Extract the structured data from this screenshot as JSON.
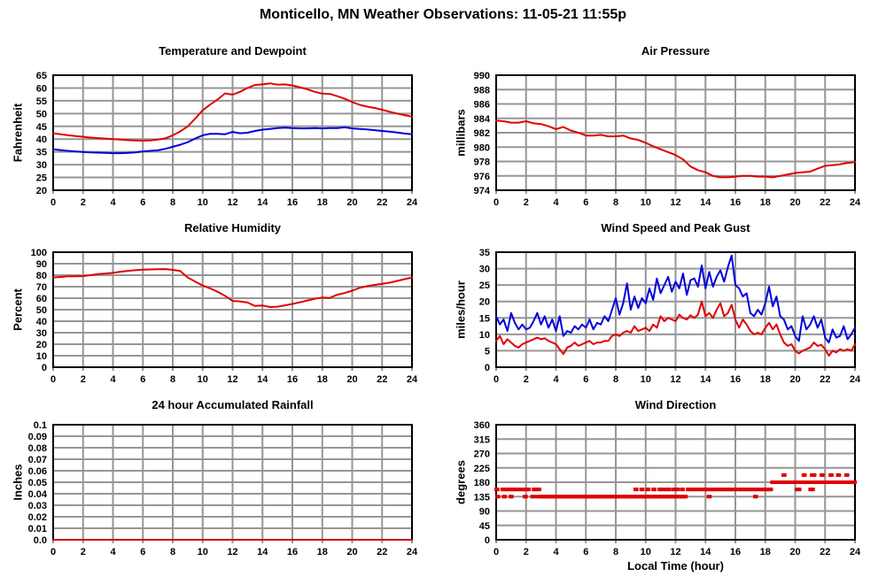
{
  "title": "Monticello, MN Weather Observations: 11-05-21 11:55p",
  "chart_data": [
    {
      "id": "temperature-dewpoint",
      "type": "line",
      "title": "Temperature and Dewpoint",
      "ylabel": "Fahrenheit",
      "xlabel": "",
      "xlim": [
        0,
        24
      ],
      "ylim": [
        20,
        65
      ],
      "xtick_values": [
        0,
        2,
        4,
        6,
        8,
        10,
        12,
        14,
        16,
        18,
        20,
        22,
        24
      ],
      "xtick_labels": [
        "0",
        "2",
        "4",
        "6",
        "8",
        "10",
        "12",
        "14",
        "16",
        "18",
        "20",
        "22",
        "24"
      ],
      "ytick_values": [
        20,
        25,
        30,
        35,
        40,
        45,
        50,
        55,
        60,
        65
      ],
      "ytick_labels": [
        "20",
        "25",
        "30",
        "35",
        "40",
        "45",
        "50",
        "55",
        "60",
        "65"
      ],
      "series": [
        {
          "name": "temperature",
          "color": "#e00000",
          "x0": 0,
          "dx": 0.5,
          "y": [
            42.3,
            41.9,
            41.5,
            41.2,
            40.9,
            40.6,
            40.4,
            40.2,
            40.0,
            39.8,
            39.6,
            39.5,
            39.4,
            39.5,
            39.8,
            40.3,
            41.5,
            43.0,
            45.0,
            48.0,
            51.3,
            53.5,
            55.5,
            57.9,
            57.4,
            58.5,
            60.0,
            61.2,
            61.4,
            61.8,
            61.3,
            61.4,
            61.0,
            60.3,
            59.5,
            58.5,
            57.8,
            57.7,
            56.8,
            55.8,
            54.5,
            53.4,
            52.7,
            52.2,
            51.5,
            50.7,
            50.0,
            49.4,
            48.8
          ]
        },
        {
          "name": "dewpoint",
          "color": "#0000dd",
          "x0": 0,
          "dx": 0.5,
          "y": [
            36.0,
            35.7,
            35.4,
            35.2,
            35.0,
            34.8,
            34.7,
            34.6,
            34.5,
            34.5,
            34.6,
            34.8,
            35.2,
            35.4,
            35.6,
            36.2,
            37.0,
            37.8,
            38.8,
            40.2,
            41.5,
            42.1,
            42.1,
            41.9,
            42.8,
            42.3,
            42.5,
            43.2,
            43.7,
            44.0,
            44.3,
            44.5,
            44.3,
            44.2,
            44.2,
            44.3,
            44.2,
            44.3,
            44.3,
            44.6,
            44.2,
            44.0,
            43.8,
            43.5,
            43.2,
            42.9,
            42.6,
            42.2,
            41.9
          ]
        }
      ]
    },
    {
      "id": "air-pressure",
      "type": "line",
      "title": "Air Pressure",
      "ylabel": "millibars",
      "xlabel": "",
      "xlim": [
        0,
        24
      ],
      "ylim": [
        974,
        990
      ],
      "xtick_values": [
        0,
        2,
        4,
        6,
        8,
        10,
        12,
        14,
        16,
        18,
        20,
        22,
        24
      ],
      "xtick_labels": [
        "0",
        "2",
        "4",
        "6",
        "8",
        "10",
        "12",
        "14",
        "16",
        "18",
        "20",
        "22",
        "24"
      ],
      "ytick_values": [
        974,
        976,
        978,
        980,
        982,
        984,
        986,
        988,
        990
      ],
      "ytick_labels": [
        "974",
        "976",
        "978",
        "980",
        "982",
        "984",
        "986",
        "988",
        "990"
      ],
      "series": [
        {
          "name": "pressure",
          "color": "#e00000",
          "x0": 0,
          "dx": 0.5,
          "y": [
            983.7,
            983.6,
            983.4,
            983.4,
            983.6,
            983.3,
            983.2,
            982.9,
            982.5,
            982.8,
            982.3,
            982.0,
            981.6,
            981.6,
            981.7,
            981.5,
            981.5,
            981.6,
            981.2,
            981.0,
            980.6,
            980.1,
            979.7,
            979.3,
            978.9,
            978.3,
            977.3,
            976.8,
            976.5,
            976.0,
            975.8,
            975.8,
            975.9,
            976.0,
            976.0,
            975.9,
            975.9,
            975.8,
            976.0,
            976.2,
            976.4,
            976.5,
            976.6,
            977.0,
            977.4,
            977.5,
            977.6,
            977.8,
            977.9
          ]
        }
      ]
    },
    {
      "id": "relative-humidity",
      "type": "line",
      "title": "Relative Humidity",
      "ylabel": "Percent",
      "xlabel": "",
      "xlim": [
        0,
        24
      ],
      "ylim": [
        0,
        100
      ],
      "xtick_values": [
        0,
        2,
        4,
        6,
        8,
        10,
        12,
        14,
        16,
        18,
        20,
        22,
        24
      ],
      "xtick_labels": [
        "0",
        "2",
        "4",
        "6",
        "8",
        "10",
        "12",
        "14",
        "16",
        "18",
        "20",
        "22",
        "24"
      ],
      "ytick_values": [
        0,
        10,
        20,
        30,
        40,
        50,
        60,
        70,
        80,
        90,
        100
      ],
      "ytick_labels": [
        "0",
        "10",
        "20",
        "30",
        "40",
        "50",
        "60",
        "70",
        "80",
        "90",
        "100"
      ],
      "series": [
        {
          "name": "humidity",
          "color": "#e00000",
          "x0": 0,
          "dx": 0.5,
          "y": [
            78,
            78.5,
            79,
            79,
            79.2,
            80,
            81,
            81.5,
            82,
            83,
            83.8,
            84.3,
            84.8,
            85,
            85.2,
            85.3,
            84.6,
            83.6,
            78,
            74.5,
            71,
            68.5,
            65.5,
            62,
            57.6,
            57.2,
            56.2,
            53.2,
            53.6,
            52.3,
            52.6,
            53.8,
            55,
            56.5,
            58,
            59.5,
            60.6,
            60.2,
            63,
            64.5,
            66.5,
            69,
            70.5,
            71.5,
            72.5,
            73.5,
            75,
            76.5,
            78
          ]
        }
      ]
    },
    {
      "id": "wind-speed-gust",
      "type": "line",
      "title": "Wind Speed and Peak Gust",
      "ylabel": "miles/hour",
      "xlabel": "",
      "xlim": [
        0,
        24
      ],
      "ylim": [
        0,
        35
      ],
      "xtick_values": [
        0,
        2,
        4,
        6,
        8,
        10,
        12,
        14,
        16,
        18,
        20,
        22,
        24
      ],
      "xtick_labels": [
        "0",
        "2",
        "4",
        "6",
        "8",
        "10",
        "12",
        "14",
        "16",
        "18",
        "20",
        "22",
        "24"
      ],
      "ytick_values": [
        0,
        5,
        10,
        15,
        20,
        25,
        30,
        35
      ],
      "ytick_labels": [
        "0",
        "5",
        "10",
        "15",
        "20",
        "25",
        "30",
        "35"
      ],
      "series": [
        {
          "name": "peak-gust",
          "color": "#0000dd",
          "x0": 0,
          "dx": 0.25,
          "y": [
            15.5,
            13,
            14.5,
            11,
            16.5,
            13.5,
            11.5,
            13,
            11.5,
            12,
            14,
            16.5,
            13,
            15.5,
            12,
            14.5,
            11,
            15.5,
            9.5,
            11,
            10.5,
            12.5,
            11.5,
            13,
            12,
            14.5,
            11.5,
            13.5,
            13,
            15.5,
            14,
            17.5,
            21,
            16,
            19.5,
            25.5,
            17.5,
            21.5,
            18,
            21,
            19.5,
            24,
            20.5,
            27,
            22.5,
            25,
            27.5,
            23,
            26,
            24,
            28.5,
            22,
            26.5,
            27,
            24.5,
            31,
            24,
            29,
            24.5,
            27.5,
            29.5,
            26,
            30.5,
            34,
            25,
            24,
            21.5,
            22.5,
            16.5,
            15.5,
            17.5,
            16,
            19.5,
            24.5,
            18.5,
            21.5,
            15.5,
            14.5,
            11.5,
            12.5,
            9.5,
            8,
            15.5,
            11.5,
            13,
            15.5,
            12,
            14.5,
            9,
            7.5,
            11.5,
            9,
            9.5,
            12.5,
            8.5,
            10,
            12
          ]
        },
        {
          "name": "wind-speed",
          "color": "#e00000",
          "x0": 0,
          "dx": 0.25,
          "y": [
            8,
            9.5,
            7,
            8.5,
            7.5,
            6.5,
            6,
            7,
            7.5,
            8,
            8.5,
            9,
            8.5,
            8.8,
            8,
            7.5,
            7,
            5.5,
            4,
            6,
            6.5,
            7.5,
            6.5,
            7,
            7.5,
            8,
            7,
            7.5,
            7.5,
            8,
            8,
            9.5,
            10,
            9.5,
            10.5,
            11,
            10.5,
            12.5,
            11,
            11.5,
            12,
            11,
            13,
            12,
            15.5,
            14,
            15,
            14.5,
            14,
            16,
            15,
            14.5,
            15.8,
            15,
            16,
            20,
            15.5,
            16.5,
            15,
            17.5,
            19.5,
            15.5,
            16.5,
            19,
            14.5,
            12,
            14.5,
            13,
            11,
            10,
            10.5,
            10,
            12,
            13.5,
            11.5,
            13,
            10,
            7.5,
            6.5,
            7,
            5,
            4.2,
            5,
            5.5,
            6,
            7.5,
            6.5,
            6.8,
            5.5,
            3.5,
            5,
            4.5,
            5.5,
            5,
            5.5,
            5,
            7
          ]
        }
      ]
    },
    {
      "id": "rainfall",
      "type": "line",
      "title": "24 hour Accumulated Rainfall",
      "ylabel": "Inches",
      "xlabel": "",
      "xlim": [
        0,
        24
      ],
      "ylim": [
        0,
        0.1
      ],
      "xtick_values": [
        0,
        2,
        4,
        6,
        8,
        10,
        12,
        14,
        16,
        18,
        20,
        22,
        24
      ],
      "xtick_labels": [
        "0",
        "2",
        "4",
        "6",
        "8",
        "10",
        "12",
        "14",
        "16",
        "18",
        "20",
        "22",
        "24"
      ],
      "ytick_values": [
        0,
        0.01,
        0.02,
        0.03,
        0.04,
        0.05,
        0.06,
        0.07,
        0.08,
        0.09,
        0.1
      ],
      "ytick_labels": [
        "0.0",
        "0.01",
        "0.02",
        "0.03",
        "0.04",
        "0.05",
        "0.06",
        "0.07",
        "0.08",
        "0.09",
        "0.1"
      ],
      "series": [
        {
          "name": "rainfall",
          "color": "#cc0000",
          "x0": 0,
          "dx": 24,
          "y": [
            0,
            0
          ]
        }
      ]
    },
    {
      "id": "wind-direction",
      "type": "scatter",
      "title": "Wind Direction",
      "ylabel": "degrees",
      "xlabel": "Local Time (hour)",
      "xlim": [
        0,
        24
      ],
      "ylim": [
        0,
        360
      ],
      "xtick_values": [
        0,
        2,
        4,
        6,
        8,
        10,
        12,
        14,
        16,
        18,
        20,
        22,
        24
      ],
      "xtick_labels": [
        "0",
        "2",
        "4",
        "6",
        "8",
        "10",
        "12",
        "14",
        "16",
        "18",
        "20",
        "22",
        "24"
      ],
      "ytick_values": [
        0,
        45,
        90,
        135,
        180,
        225,
        270,
        315,
        360
      ],
      "ytick_labels": [
        "0",
        "45",
        "90",
        "135",
        "180",
        "225",
        "270",
        "315",
        "360"
      ],
      "series": [
        {
          "name": "wind-direction",
          "type": "scatter",
          "color": "#e00000",
          "dot_step": 0.1,
          "groups": [
            {
              "deg": 157.5,
              "runs": [
                [
                  0,
                  0.1
                ],
                [
                  0.4,
                  2.25
                ],
                [
                  2.5,
                  2.9
                ],
                [
                  9.3,
                  9.4
                ],
                [
                  9.7,
                  9.8
                ],
                [
                  10.1,
                  10.2
                ],
                [
                  10.5,
                  10.65
                ],
                [
                  10.9,
                  11.15
                ],
                [
                  11.3,
                  11.6
                ],
                [
                  11.85,
                  12.2
                ],
                [
                  12.4,
                  12.5
                ],
                [
                  12.8,
                  18.45
                ],
                [
                  20.1,
                  20.3
                ],
                [
                  21.0,
                  21.2
                ]
              ]
            },
            {
              "deg": 135,
              "runs": [
                [
                  0.05,
                  0.15
                ],
                [
                  0.5,
                  0.6
                ],
                [
                  0.95,
                  1.1
                ],
                [
                  1.9,
                  2.0
                ],
                [
                  2.4,
                  2.5
                ],
                [
                  2.7,
                  2.75
                ],
                [
                  2.9,
                  12.75
                ],
                [
                  14.2,
                  14.3
                ],
                [
                  17.3,
                  17.4
                ]
              ]
            },
            {
              "deg": 180,
              "runs": [
                [
                  18.45,
                  21.6
                ],
                [
                  21.75,
                  23.0
                ],
                [
                  23.1,
                  24.0
                ]
              ]
            },
            {
              "deg": 202.5,
              "runs": [
                [
                  19.2,
                  19.3
                ],
                [
                  20.55,
                  20.65
                ],
                [
                  21.1,
                  21.3
                ],
                [
                  21.75,
                  21.85
                ],
                [
                  22.35,
                  22.5
                ],
                [
                  22.85,
                  23.0
                ],
                [
                  23.4,
                  23.55
                ]
              ]
            }
          ]
        }
      ]
    }
  ],
  "style": {
    "grid_color": "#969696",
    "frame_color": "#000000",
    "background": "#ffffff"
  }
}
